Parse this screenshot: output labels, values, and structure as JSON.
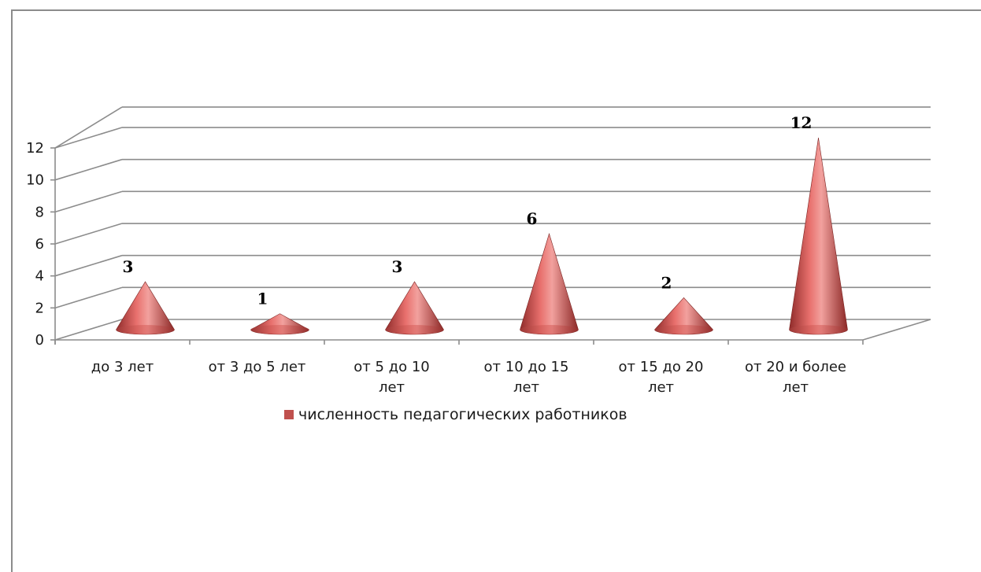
{
  "chart_data": {
    "type": "bar",
    "shape": "cone",
    "categories": [
      [
        "до 3 лет"
      ],
      [
        "от 3 до 5 лет"
      ],
      [
        "от 5 до 10",
        "лет"
      ],
      [
        "от 10 до 15",
        "лет"
      ],
      [
        "от 15 до 20",
        "лет"
      ],
      [
        "от 20 и более",
        "лет"
      ]
    ],
    "series": [
      {
        "name": "численность педагогических работников",
        "values": [
          3,
          1,
          3,
          6,
          2,
          12
        ],
        "color": "#c0504d"
      }
    ],
    "data_labels": [
      "3",
      "1",
      "3",
      "6",
      "2",
      "12"
    ],
    "y_ticks": [
      "0",
      "2",
      "4",
      "6",
      "8",
      "10",
      "12"
    ],
    "ylim": [
      0,
      12
    ],
    "grid": true,
    "legend_position": "bottom"
  }
}
